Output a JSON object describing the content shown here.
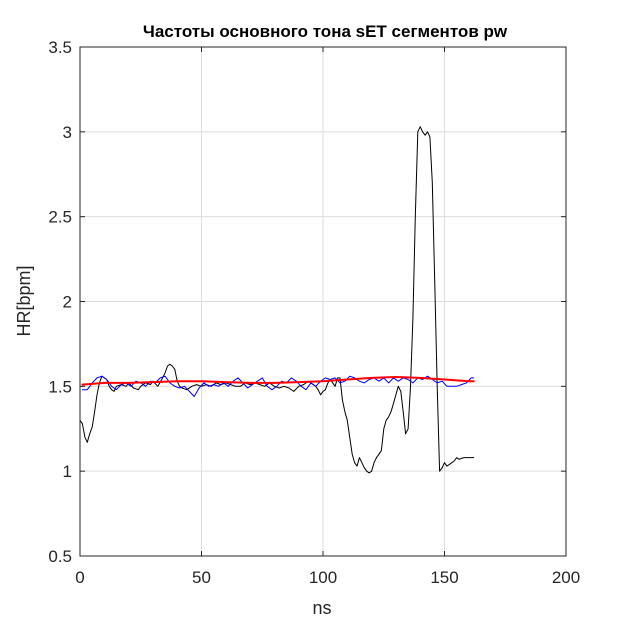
{
  "chart_data": {
    "type": "line",
    "title": "Частоты основного тона sET сегментов pw",
    "xlabel": "ns",
    "ylabel": "HR[bpm]",
    "xlim": [
      0,
      200
    ],
    "ylim": [
      0.5,
      3.5
    ],
    "xticks": [
      0,
      50,
      100,
      150,
      200
    ],
    "yticks": [
      0.5,
      1,
      1.5,
      2,
      2.5,
      3,
      3.5
    ],
    "xtick_labels": [
      "0",
      "50",
      "100",
      "150",
      "200"
    ],
    "ytick_labels": [
      "0.5",
      "1",
      "1.5",
      "2",
      "2.5",
      "3",
      "3.5"
    ],
    "grid": true,
    "box": true,
    "series": [
      {
        "color": "#000000",
        "width": 1,
        "x": [
          0,
          1,
          2,
          3,
          4,
          5,
          6,
          7,
          8,
          9,
          10,
          11,
          12,
          13,
          14,
          15,
          17,
          19,
          20,
          22,
          24,
          25,
          27,
          29,
          30,
          32,
          34,
          35,
          36,
          37,
          38,
          39,
          40,
          41,
          42,
          44,
          46,
          48,
          50,
          52,
          54,
          56,
          58,
          60,
          62,
          64,
          66,
          68,
          70,
          72,
          74,
          76,
          78,
          80,
          82,
          84,
          86,
          88,
          90,
          92,
          94,
          95,
          97,
          98,
          99,
          100,
          101,
          102,
          103,
          104,
          105,
          106,
          107,
          108,
          109,
          110,
          111,
          112,
          113,
          114,
          115,
          116,
          117,
          118,
          119,
          120,
          121,
          122,
          123,
          124,
          125,
          126,
          127,
          128,
          129,
          130,
          131,
          132,
          133,
          134,
          135,
          136,
          137,
          138,
          139,
          140,
          141,
          142,
          143,
          144,
          145,
          146,
          147,
          148,
          149,
          150,
          151,
          152,
          153,
          154,
          155,
          156,
          158,
          160,
          162
        ],
        "y": [
          1.3,
          1.28,
          1.2,
          1.17,
          1.22,
          1.26,
          1.35,
          1.45,
          1.52,
          1.56,
          1.55,
          1.54,
          1.5,
          1.48,
          1.47,
          1.5,
          1.51,
          1.5,
          1.52,
          1.49,
          1.48,
          1.5,
          1.52,
          1.51,
          1.53,
          1.5,
          1.55,
          1.58,
          1.62,
          1.63,
          1.62,
          1.6,
          1.53,
          1.5,
          1.49,
          1.48,
          1.5,
          1.51,
          1.5,
          1.51,
          1.5,
          1.52,
          1.51,
          1.52,
          1.51,
          1.5,
          1.5,
          1.52,
          1.51,
          1.52,
          1.51,
          1.5,
          1.52,
          1.5,
          1.49,
          1.5,
          1.49,
          1.47,
          1.5,
          1.51,
          1.53,
          1.52,
          1.5,
          1.48,
          1.45,
          1.47,
          1.48,
          1.52,
          1.54,
          1.52,
          1.5,
          1.55,
          1.55,
          1.42,
          1.35,
          1.3,
          1.2,
          1.1,
          1.05,
          1.03,
          1.08,
          1.05,
          1.02,
          1.0,
          0.99,
          1.0,
          1.05,
          1.08,
          1.1,
          1.12,
          1.25,
          1.3,
          1.32,
          1.35,
          1.4,
          1.45,
          1.5,
          1.47,
          1.35,
          1.22,
          1.25,
          1.5,
          1.9,
          2.5,
          3.0,
          3.03,
          3.0,
          2.98,
          3.0,
          2.97,
          2.7,
          2.1,
          1.5,
          1.0,
          1.02,
          1.05,
          1.03,
          1.04,
          1.05,
          1.06,
          1.08,
          1.07,
          1.08,
          1.08,
          1.08
        ]
      },
      {
        "color": "#0000ff",
        "width": 1,
        "x": [
          1,
          3,
          5,
          7,
          9,
          11,
          13,
          15,
          17,
          19,
          21,
          23,
          25,
          27,
          29,
          31,
          33,
          35,
          37,
          39,
          41,
          43,
          45,
          47,
          49,
          51,
          53,
          55,
          57,
          59,
          61,
          63,
          65,
          67,
          69,
          71,
          73,
          75,
          77,
          79,
          81,
          83,
          85,
          87,
          89,
          91,
          93,
          95,
          97,
          99,
          101,
          103,
          105,
          107,
          109,
          111,
          113,
          115,
          117,
          119,
          121,
          123,
          125,
          127,
          129,
          131,
          133,
          135,
          137,
          139,
          141,
          143,
          145,
          147,
          149,
          151,
          153,
          155,
          157,
          159,
          161,
          162
        ],
        "y": [
          1.48,
          1.48,
          1.52,
          1.55,
          1.56,
          1.54,
          1.5,
          1.48,
          1.51,
          1.52,
          1.5,
          1.53,
          1.52,
          1.5,
          1.53,
          1.52,
          1.55,
          1.56,
          1.52,
          1.5,
          1.49,
          1.5,
          1.47,
          1.44,
          1.49,
          1.52,
          1.5,
          1.51,
          1.5,
          1.52,
          1.5,
          1.53,
          1.55,
          1.52,
          1.49,
          1.51,
          1.53,
          1.55,
          1.5,
          1.48,
          1.5,
          1.53,
          1.52,
          1.55,
          1.53,
          1.5,
          1.48,
          1.52,
          1.5,
          1.53,
          1.55,
          1.54,
          1.55,
          1.52,
          1.53,
          1.56,
          1.55,
          1.53,
          1.52,
          1.54,
          1.55,
          1.53,
          1.55,
          1.52,
          1.55,
          1.53,
          1.55,
          1.54,
          1.52,
          1.55,
          1.54,
          1.56,
          1.54,
          1.52,
          1.53,
          1.5,
          1.5,
          1.5,
          1.51,
          1.52,
          1.55,
          1.55
        ]
      },
      {
        "color": "#ff0000",
        "width": 2,
        "x": [
          1,
          10,
          20,
          30,
          40,
          50,
          60,
          70,
          80,
          90,
          100,
          110,
          120,
          130,
          140,
          150,
          160,
          162
        ],
        "y": [
          1.51,
          1.52,
          1.52,
          1.525,
          1.53,
          1.53,
          1.525,
          1.52,
          1.52,
          1.525,
          1.53,
          1.54,
          1.55,
          1.555,
          1.55,
          1.54,
          1.53,
          1.53
        ]
      }
    ]
  }
}
